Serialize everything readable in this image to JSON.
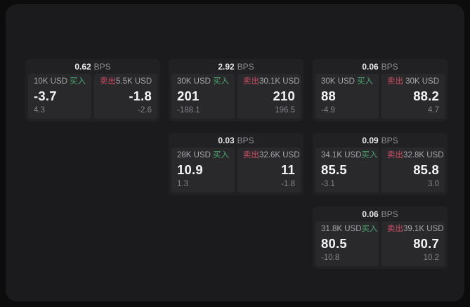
{
  "colors": {
    "buy_green": "#4ca56e",
    "sell_red": "#d14d64",
    "panel_background": "#1b1b1d",
    "card_background": "#212124",
    "tile_background": "#29292c"
  },
  "cards": [
    {
      "bps": "0.62",
      "unit": "BPS",
      "buy": {
        "notional": "10K USD",
        "label": "买入",
        "price": "-3.7",
        "delta": "4.3"
      },
      "sell": {
        "label": "卖出",
        "notional": "5.5K USD",
        "price": "-1.8",
        "delta": "-2.6"
      }
    },
    {
      "bps": "2.92",
      "unit": "BPS",
      "buy": {
        "notional": "30K USD",
        "label": "买入",
        "price": "201",
        "delta": "-188.1"
      },
      "sell": {
        "label": "卖出",
        "notional": "30.1K USD",
        "price": "210",
        "delta": "196.5"
      }
    },
    {
      "bps": "0.06",
      "unit": "BPS",
      "buy": {
        "notional": "30K USD",
        "label": "买入",
        "price": "88",
        "delta": "-4.9"
      },
      "sell": {
        "label": "卖出",
        "notional": "30K USD",
        "price": "88.2",
        "delta": "4.7"
      }
    },
    {
      "bps": "0.03",
      "unit": "BPS",
      "buy": {
        "notional": "28K USD",
        "label": "买入",
        "price": "10.9",
        "delta": "1.3"
      },
      "sell": {
        "label": "卖出",
        "notional": "32.6K USD",
        "price": "11",
        "delta": "-1.8"
      }
    },
    {
      "bps": "0.09",
      "unit": "BPS",
      "buy": {
        "notional": "34.1K USD",
        "label": "买入",
        "price": "85.5",
        "delta": "-3.1"
      },
      "sell": {
        "label": "卖出",
        "notional": "32.8K USD",
        "price": "85.8",
        "delta": "3.0"
      }
    },
    {
      "bps": "0.06",
      "unit": "BPS",
      "buy": {
        "notional": "31.8K USD",
        "label": "买入",
        "price": "80.5",
        "delta": "-10.8"
      },
      "sell": {
        "label": "卖出",
        "notional": "39.1K USD",
        "price": "80.7",
        "delta": "10.2"
      }
    }
  ]
}
